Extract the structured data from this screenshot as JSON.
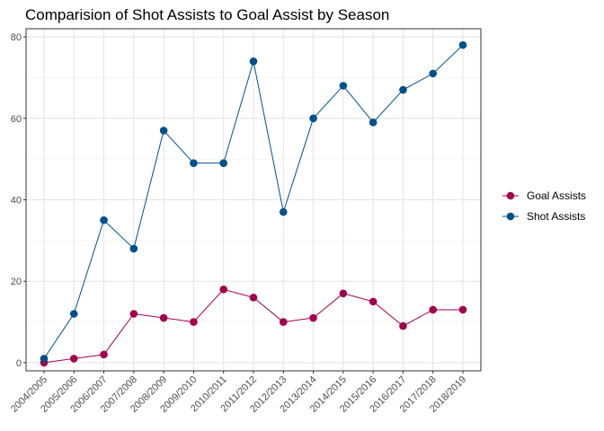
{
  "chart_data": {
    "type": "line",
    "title": "Comparision of Shot Assists to Goal Assist by Season",
    "xlabel": "",
    "ylabel": "",
    "categories": [
      "2004/2005",
      "2005/2006",
      "2006/2007",
      "2007/2008",
      "2008/2009",
      "2009/2010",
      "2010/2011",
      "2011/2012",
      "2012/2013",
      "2013/2014",
      "2014/2015",
      "2015/2016",
      "2016/2017",
      "2017/2018",
      "2018/2019"
    ],
    "ylim": [
      -2,
      82
    ],
    "yticks": [
      0,
      20,
      40,
      60,
      80
    ],
    "ytick_labels": [
      "0",
      "20",
      "40",
      "60",
      "80"
    ],
    "grid": true,
    "legend_position": "right",
    "series": [
      {
        "name": "Goal Assists",
        "color": "#a3004d",
        "values": [
          0,
          1,
          2,
          12,
          11,
          10,
          18,
          16,
          10,
          11,
          17,
          15,
          9,
          13,
          13
        ]
      },
      {
        "name": "Shot Assists",
        "color": "#00508c",
        "values": [
          1,
          12,
          35,
          28,
          57,
          49,
          49,
          74,
          37,
          60,
          68,
          59,
          67,
          71,
          78
        ]
      }
    ]
  }
}
